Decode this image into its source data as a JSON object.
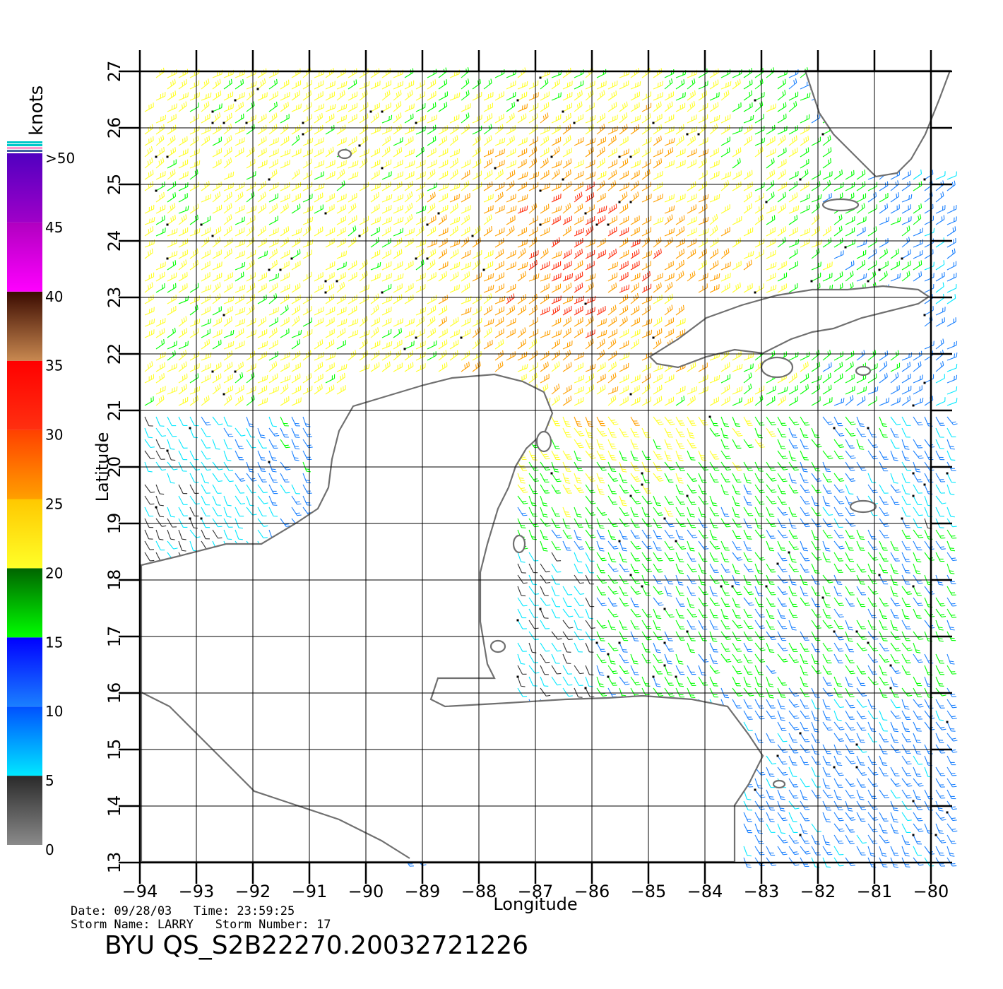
{
  "map": {
    "lon_range": [
      -94,
      -80
    ],
    "lat_range": [
      13,
      27
    ],
    "lon_ticks": [
      "-94",
      "-93",
      "-92",
      "-91",
      "-90",
      "-89",
      "-88",
      "-87",
      "-86",
      "-85",
      "-84",
      "-83",
      "-82",
      "-81",
      "-80"
    ],
    "lat_ticks": [
      "13",
      "14",
      "15",
      "16",
      "17",
      "18",
      "19",
      "20",
      "21",
      "22",
      "23",
      "24",
      "25",
      "26",
      "27"
    ],
    "xlabel": "Longitude",
    "ylabel": "Latitude",
    "grid": true,
    "coast_color": "#707070",
    "land_color": "#ffffff"
  },
  "legend": {
    "title": "knots",
    "labels": [
      ">50",
      "45",
      "40",
      "35",
      "30",
      "25",
      "20",
      "15",
      "10",
      "5",
      "0"
    ],
    "bands": [
      {
        "from": 0,
        "to": 5,
        "top": "#2a2a2a",
        "bottom": "#8a8a8a"
      },
      {
        "from": 5,
        "to": 10,
        "top": "#0050ff",
        "bottom": "#00e8ff"
      },
      {
        "from": 10,
        "to": 15,
        "top": "#0000ff",
        "bottom": "#1a80ff"
      },
      {
        "from": 15,
        "to": 20,
        "top": "#006400",
        "bottom": "#00ff00"
      },
      {
        "from": 20,
        "to": 25,
        "top": "#ffc800",
        "bottom": "#ffff28"
      },
      {
        "from": 25,
        "to": 30,
        "top": "#ff4000",
        "bottom": "#ffa000"
      },
      {
        "from": 30,
        "to": 35,
        "top": "#ff0000",
        "bottom": "#ff3010"
      },
      {
        "from": 35,
        "to": 40,
        "top": "#3a0a00",
        "bottom": "#c88850"
      },
      {
        "from": 40,
        "to": 45,
        "top": "#b000c0",
        "bottom": "#ff00ff"
      },
      {
        "from": 45,
        "to": 50,
        "top": "#5000c0",
        "bottom": "#a000c8"
      }
    ]
  },
  "footer": {
    "date_line": "Date: 09/28/03   Time: 23:59:25",
    "storm_line": "Storm Name: LARRY   Storm Number: 17",
    "product": "BYU QS_S2B22270.20032721226"
  }
}
